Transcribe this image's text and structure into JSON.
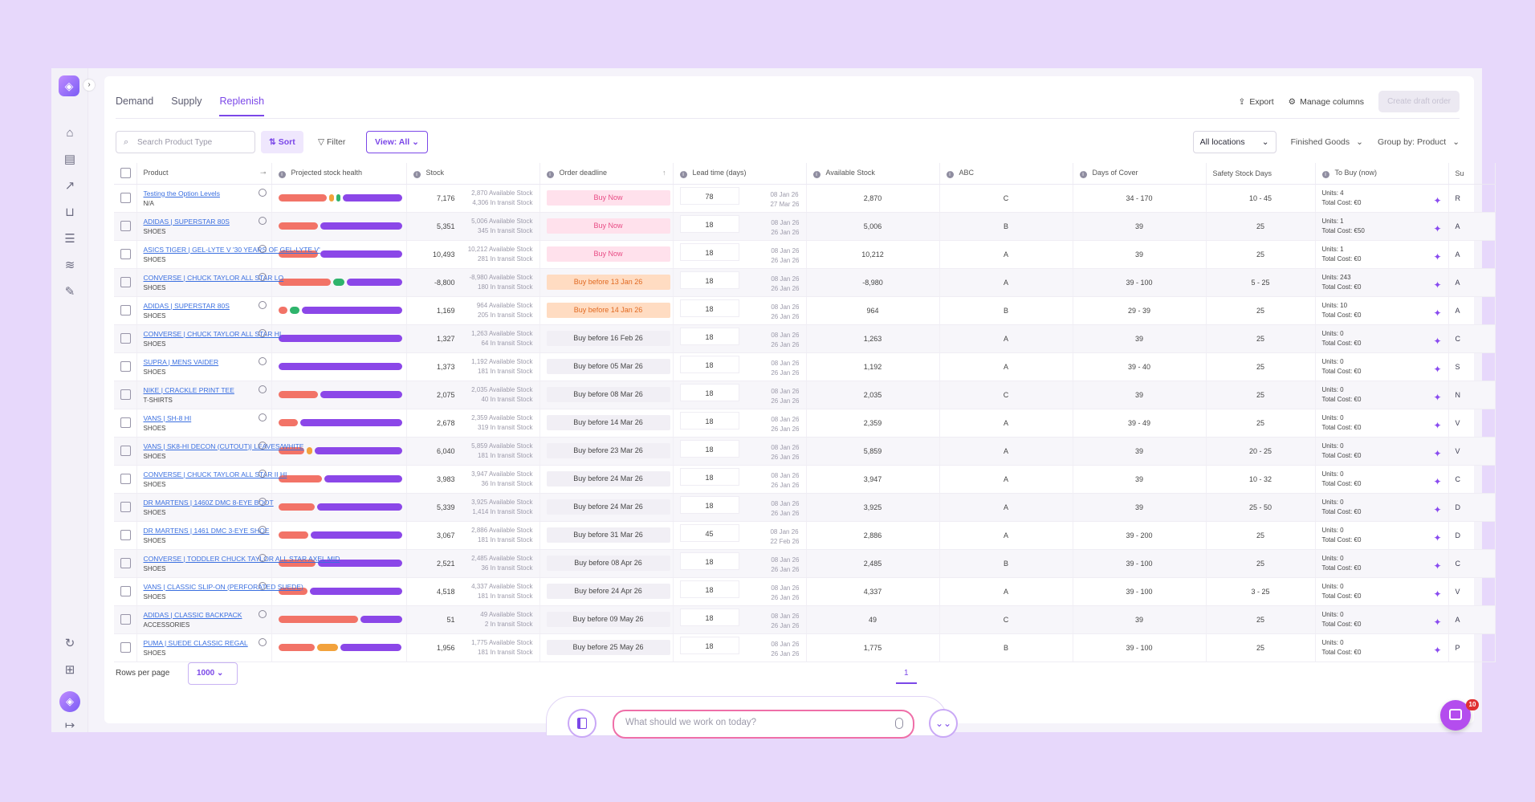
{
  "tabs": [
    {
      "label": "Demand"
    },
    {
      "label": "Supply"
    },
    {
      "label": "Replenish"
    }
  ],
  "top_actions": {
    "export": "Export",
    "manage_columns": "Manage columns",
    "create_draft": "Create draft order"
  },
  "toolbar": {
    "search_placeholder": "Search Product Type",
    "sort": "Sort",
    "filter": "Filter",
    "view": "View: All",
    "locations": "All locations",
    "finished_goods": "Finished Goods",
    "group_by": "Group by: Product"
  },
  "columns": [
    "Product",
    "Projected stock health",
    "Stock",
    "Order deadline",
    "Lead time (days)",
    "Available Stock",
    "ABC",
    "Days of Cover",
    "Safety Stock Days",
    "To Buy (now)",
    "Su"
  ],
  "colors": {
    "red": "#f27367",
    "purple": "#8b47e8",
    "orange": "#f2a23c",
    "green": "#2fb46c",
    "accent": "#7b47e8"
  },
  "rows": [
    {
      "name": "Testing the Option Levels",
      "cat": "N/A",
      "bar": [
        [
          "red",
          42
        ],
        [
          "orange",
          4
        ],
        [
          "green",
          3
        ],
        [
          "purple",
          51
        ]
      ],
      "stock": "7,176",
      "avail": "2,870 Available Stock",
      "transit": "4,306 In transit Stock",
      "deadline": "Buy Now",
      "dl": "now",
      "lead": "78",
      "ld1": "08 Jan 26",
      "ld2": "27 Mar 26",
      "available": "2,870",
      "abc": "C",
      "cover": "34 - 170",
      "safety": "10 - 45",
      "units": "Units:  4",
      "cost": "Total Cost: €0",
      "sup": "R"
    },
    {
      "name": "ADIDAS | SUPERSTAR 80S",
      "cat": "SHOES",
      "bar": [
        [
          "red",
          33
        ],
        [
          "purple",
          67
        ]
      ],
      "stock": "5,351",
      "avail": "5,006 Available Stock",
      "transit": "345 In transit Stock",
      "deadline": "Buy Now",
      "dl": "now",
      "lead": "18",
      "ld1": "08 Jan 26",
      "ld2": "26 Jan 26",
      "available": "5,006",
      "abc": "B",
      "cover": "39",
      "safety": "25",
      "units": "Units:  1",
      "cost": "Total Cost: €50",
      "sup": "A"
    },
    {
      "name": "ASICS TIGER | GEL-LYTE V '30 YEARS OF GEL-LYTE V'",
      "cat": "SHOES",
      "bar": [
        [
          "red",
          33
        ],
        [
          "purple",
          67
        ]
      ],
      "stock": "10,493",
      "avail": "10,212 Available Stock",
      "transit": "281 In transit Stock",
      "deadline": "Buy Now",
      "dl": "now",
      "lead": "18",
      "ld1": "08 Jan 26",
      "ld2": "26 Jan 26",
      "available": "10,212",
      "abc": "A",
      "cover": "39",
      "safety": "25",
      "units": "Units:  1",
      "cost": "Total Cost: €0",
      "sup": "A"
    },
    {
      "name": "CONVERSE | CHUCK TAYLOR ALL STAR LO",
      "cat": "SHOES",
      "bar": [
        [
          "red",
          44
        ],
        [
          "green",
          10
        ],
        [
          "purple",
          46
        ]
      ],
      "stock": "-8,800",
      "avail": "-8,980 Available Stock",
      "transit": "180 In transit Stock",
      "deadline": "Buy before 13 Jan 26",
      "dl": "soon",
      "lead": "18",
      "ld1": "08 Jan 26",
      "ld2": "26 Jan 26",
      "available": "-8,980",
      "abc": "A",
      "cover": "39 - 100",
      "safety": "5 - 25",
      "units": "Units:  243",
      "cost": "Total Cost: €0",
      "sup": "A"
    },
    {
      "name": "ADIDAS | SUPERSTAR 80S",
      "cat": "SHOES",
      "bar": [
        [
          "red",
          8
        ],
        [
          "green",
          8
        ],
        [
          "purple",
          84
        ]
      ],
      "stock": "1,169",
      "avail": "964 Available Stock",
      "transit": "205 In transit Stock",
      "deadline": "Buy before 14 Jan 26",
      "dl": "soon",
      "lead": "18",
      "ld1": "08 Jan 26",
      "ld2": "26 Jan 26",
      "available": "964",
      "abc": "B",
      "cover": "29 - 39",
      "safety": "25",
      "units": "Units:  10",
      "cost": "Total Cost: €0",
      "sup": "A"
    },
    {
      "name": "CONVERSE | CHUCK TAYLOR ALL STAR HI",
      "cat": "SHOES",
      "bar": [
        [
          "purple",
          100
        ]
      ],
      "stock": "1,327",
      "avail": "1,263 Available Stock",
      "transit": "64 In transit Stock",
      "deadline": "Buy before 16 Feb 26",
      "dl": "",
      "lead": "18",
      "ld1": "08 Jan 26",
      "ld2": "26 Jan 26",
      "available": "1,263",
      "abc": "A",
      "cover": "39",
      "safety": "25",
      "units": "Units:  0",
      "cost": "Total Cost: €0",
      "sup": "C"
    },
    {
      "name": "SUPRA | MENS VAIDER",
      "cat": "SHOES",
      "bar": [
        [
          "purple",
          100
        ]
      ],
      "stock": "1,373",
      "avail": "1,192 Available Stock",
      "transit": "181 In transit Stock",
      "deadline": "Buy before 05 Mar 26",
      "dl": "",
      "lead": "18",
      "ld1": "08 Jan 26",
      "ld2": "26 Jan 26",
      "available": "1,192",
      "abc": "A",
      "cover": "39 - 40",
      "safety": "25",
      "units": "Units:  0",
      "cost": "Total Cost: €0",
      "sup": "S"
    },
    {
      "name": "NIKE | CRACKLE PRINT TEE",
      "cat": "T-SHIRTS",
      "bar": [
        [
          "red",
          33
        ],
        [
          "purple",
          67
        ]
      ],
      "stock": "2,075",
      "avail": "2,035 Available Stock",
      "transit": "40 In transit Stock",
      "deadline": "Buy before 08 Mar 26",
      "dl": "",
      "lead": "18",
      "ld1": "08 Jan 26",
      "ld2": "26 Jan 26",
      "available": "2,035",
      "abc": "C",
      "cover": "39",
      "safety": "25",
      "units": "Units:  0",
      "cost": "Total Cost: €0",
      "sup": "N"
    },
    {
      "name": "VANS | SH-8 HI",
      "cat": "SHOES",
      "bar": [
        [
          "red",
          16
        ],
        [
          "purple",
          84
        ]
      ],
      "stock": "2,678",
      "avail": "2,359 Available Stock",
      "transit": "319 In transit Stock",
      "deadline": "Buy before 14 Mar 26",
      "dl": "",
      "lead": "18",
      "ld1": "08 Jan 26",
      "ld2": "26 Jan 26",
      "available": "2,359",
      "abc": "A",
      "cover": "39 - 49",
      "safety": "25",
      "units": "Units:  0",
      "cost": "Total Cost: €0",
      "sup": "V"
    },
    {
      "name": "VANS | SK8-HI DECON (CUTOUT)| LEAVES/WHITE",
      "cat": "SHOES",
      "bar": [
        [
          "red",
          22
        ],
        [
          "orange",
          5
        ],
        [
          "purple",
          73
        ]
      ],
      "stock": "6,040",
      "avail": "5,859 Available Stock",
      "transit": "181 In transit Stock",
      "deadline": "Buy before 23 Mar 26",
      "dl": "",
      "lead": "18",
      "ld1": "08 Jan 26",
      "ld2": "26 Jan 26",
      "available": "5,859",
      "abc": "A",
      "cover": "39",
      "safety": "20 - 25",
      "units": "Units:  0",
      "cost": "Total Cost: €0",
      "sup": "V"
    },
    {
      "name": "CONVERSE | CHUCK TAYLOR ALL STAR II HI",
      "cat": "SHOES",
      "bar": [
        [
          "red",
          36
        ],
        [
          "purple",
          64
        ]
      ],
      "stock": "3,983",
      "avail": "3,947 Available Stock",
      "transit": "36 In transit Stock",
      "deadline": "Buy before 24 Mar 26",
      "dl": "",
      "lead": "18",
      "ld1": "08 Jan 26",
      "ld2": "26 Jan 26",
      "available": "3,947",
      "abc": "A",
      "cover": "39",
      "safety": "10 - 32",
      "units": "Units:  0",
      "cost": "Total Cost: €0",
      "sup": "C"
    },
    {
      "name": "DR MARTENS | 1460Z DMC 8-EYE BOOT",
      "cat": "SHOES",
      "bar": [
        [
          "red",
          30
        ],
        [
          "purple",
          70
        ]
      ],
      "stock": "5,339",
      "avail": "3,925 Available Stock",
      "transit": "1,414 In transit Stock",
      "deadline": "Buy before 24 Mar 26",
      "dl": "",
      "lead": "18",
      "ld1": "08 Jan 26",
      "ld2": "26 Jan 26",
      "available": "3,925",
      "abc": "A",
      "cover": "39",
      "safety": "25 - 50",
      "units": "Units:  0",
      "cost": "Total Cost: €0",
      "sup": "D"
    },
    {
      "name": "DR MARTENS | 1461 DMC 3-EYE SHOE",
      "cat": "SHOES",
      "bar": [
        [
          "red",
          25
        ],
        [
          "purple",
          75
        ]
      ],
      "stock": "3,067",
      "avail": "2,886 Available Stock",
      "transit": "181 In transit Stock",
      "deadline": "Buy before 31 Mar 26",
      "dl": "",
      "lead": "45",
      "ld1": "08 Jan 26",
      "ld2": "22 Feb 26",
      "available": "2,886",
      "abc": "A",
      "cover": "39 - 200",
      "safety": "25",
      "units": "Units:  0",
      "cost": "Total Cost: €0",
      "sup": "D"
    },
    {
      "name": "CONVERSE | TODDLER CHUCK TAYLOR ALL STAR AXEL MID",
      "cat": "SHOES",
      "bar": [
        [
          "red",
          31
        ],
        [
          "purple",
          69
        ]
      ],
      "stock": "2,521",
      "avail": "2,485 Available Stock",
      "transit": "36 In transit Stock",
      "deadline": "Buy before 08 Apr 26",
      "dl": "",
      "lead": "18",
      "ld1": "08 Jan 26",
      "ld2": "26 Jan 26",
      "available": "2,485",
      "abc": "B",
      "cover": "39 - 100",
      "safety": "25",
      "units": "Units:  0",
      "cost": "Total Cost: €0",
      "sup": "C"
    },
    {
      "name": "VANS | CLASSIC SLIP-ON (PERFORATED SUEDE)",
      "cat": "SHOES",
      "bar": [
        [
          "red",
          24
        ],
        [
          "purple",
          76
        ]
      ],
      "stock": "4,518",
      "avail": "4,337 Available Stock",
      "transit": "181 In transit Stock",
      "deadline": "Buy before 24 Apr 26",
      "dl": "",
      "lead": "18",
      "ld1": "08 Jan 26",
      "ld2": "26 Jan 26",
      "available": "4,337",
      "abc": "A",
      "cover": "39 - 100",
      "safety": "3 - 25",
      "units": "Units:  0",
      "cost": "Total Cost: €0",
      "sup": "V"
    },
    {
      "name": "ADIDAS | CLASSIC BACKPACK",
      "cat": "ACCESSORIES",
      "bar": [
        [
          "red",
          66
        ],
        [
          "purple",
          34
        ]
      ],
      "stock": "51",
      "avail": "49 Available Stock",
      "transit": "2 In transit Stock",
      "deadline": "Buy before 09 May 26",
      "dl": "",
      "lead": "18",
      "ld1": "08 Jan 26",
      "ld2": "26 Jan 26",
      "available": "49",
      "abc": "C",
      "cover": "39",
      "safety": "25",
      "units": "Units:  0",
      "cost": "Total Cost: €0",
      "sup": "A"
    },
    {
      "name": "PUMA | SUEDE CLASSIC REGAL",
      "cat": "SHOES",
      "bar": [
        [
          "red",
          31
        ],
        [
          "orange",
          17
        ],
        [
          "purple",
          52
        ]
      ],
      "stock": "1,956",
      "avail": "1,775 Available Stock",
      "transit": "181 In transit Stock",
      "deadline": "Buy before 25 May 26",
      "dl": "",
      "lead": "18",
      "ld1": "08 Jan 26",
      "ld2": "26 Jan 26",
      "available": "1,775",
      "abc": "B",
      "cover": "39 - 100",
      "safety": "25",
      "units": "Units:  0",
      "cost": "Total Cost: €0",
      "sup": "P"
    }
  ],
  "pager": {
    "rows_per_page": "Rows per page",
    "value": "1000",
    "page": "1"
  },
  "ai": {
    "placeholder": "What should we work on today?"
  },
  "chat": {
    "badge": "10"
  }
}
